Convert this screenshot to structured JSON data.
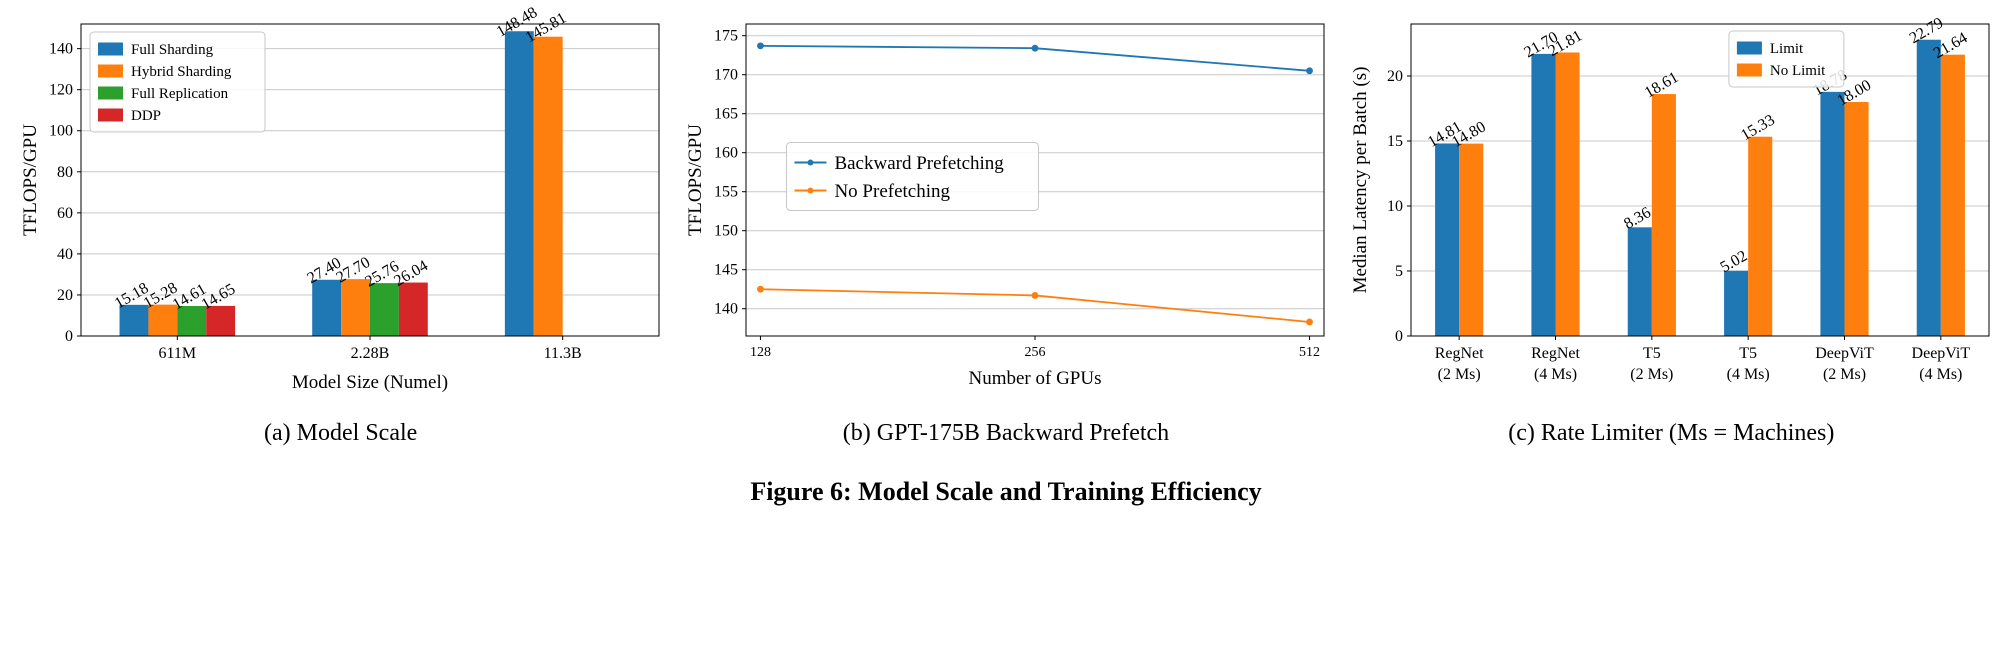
{
  "figure": {
    "caption": "Figure 6: Model Scale and Training Efficiency",
    "subcaptions": [
      "(a) Model Scale",
      "(b) GPT-175B Backward Prefetch",
      "(c) Rate Limiter (Ms = Machines)"
    ]
  },
  "colors": {
    "blue": "#1f77b4",
    "orange": "#ff7f0e",
    "green": "#2ca02c",
    "red": "#d62728",
    "grid": "#c8c8c8"
  },
  "chart_data": [
    {
      "type": "bar",
      "title": "",
      "xlabel": "Model Size (Numel)",
      "ylabel": "TFLOPS/GPU",
      "categories": [
        "611M",
        "2.28B",
        "11.3B"
      ],
      "series": [
        {
          "name": "Full Sharding",
          "color": "#1f77b4",
          "values": [
            15.18,
            27.4,
            148.48
          ]
        },
        {
          "name": "Hybrid Sharding",
          "color": "#ff7f0e",
          "values": [
            15.28,
            27.7,
            145.81
          ]
        },
        {
          "name": "Full Replication",
          "color": "#2ca02c",
          "values": [
            14.61,
            25.76,
            null
          ]
        },
        {
          "name": "DDP",
          "color": "#d62728",
          "values": [
            14.65,
            26.04,
            null
          ]
        }
      ],
      "yticks": [
        0,
        20,
        40,
        60,
        80,
        100,
        120,
        140
      ],
      "ylim": [
        0,
        152
      ],
      "grid": true,
      "legend_position": "top-left",
      "legend_fontsize": 15,
      "group_fraction": 0.6,
      "bar_labels": true,
      "bar_label_rotation": -30
    },
    {
      "type": "line",
      "title": "",
      "xlabel": "Number of GPUs",
      "ylabel": "TFLOPS/GPU",
      "x": [
        128,
        256,
        512
      ],
      "series": [
        {
          "name": "Backward Prefetching",
          "color": "#1f77b4",
          "values": [
            173.7,
            173.4,
            170.5
          ]
        },
        {
          "name": "No Prefetching",
          "color": "#ff7f0e",
          "values": [
            142.5,
            141.7,
            138.3
          ]
        }
      ],
      "yticks": [
        140,
        145,
        150,
        155,
        160,
        165,
        170,
        175
      ],
      "ylim": [
        136.5,
        176.5
      ],
      "grid": true,
      "legend_position": "center-left",
      "legend_fontsize": 19
    },
    {
      "type": "bar",
      "title": "",
      "xlabel": "",
      "ylabel": "Median Latency per Batch (s)",
      "categories": [
        "RegNet\n(2 Ms)",
        "RegNet\n(4 Ms)",
        "T5\n(2 Ms)",
        "T5\n(4 Ms)",
        "DeepViT\n(2 Ms)",
        "DeepViT\n(4 Ms)"
      ],
      "series": [
        {
          "name": "Limit",
          "color": "#1f77b4",
          "values": [
            14.81,
            21.7,
            8.36,
            5.02,
            18.78,
            22.79
          ]
        },
        {
          "name": "No Limit",
          "color": "#ff7f0e",
          "values": [
            14.8,
            21.81,
            18.61,
            15.33,
            18.0,
            21.64
          ]
        }
      ],
      "yticks": [
        0,
        5,
        10,
        15,
        20
      ],
      "ylim": [
        0,
        24
      ],
      "grid": true,
      "legend_position": "top-center-right",
      "legend_fontsize": 15,
      "group_fraction": 0.5,
      "bar_labels": true,
      "bar_label_rotation": -30
    }
  ]
}
